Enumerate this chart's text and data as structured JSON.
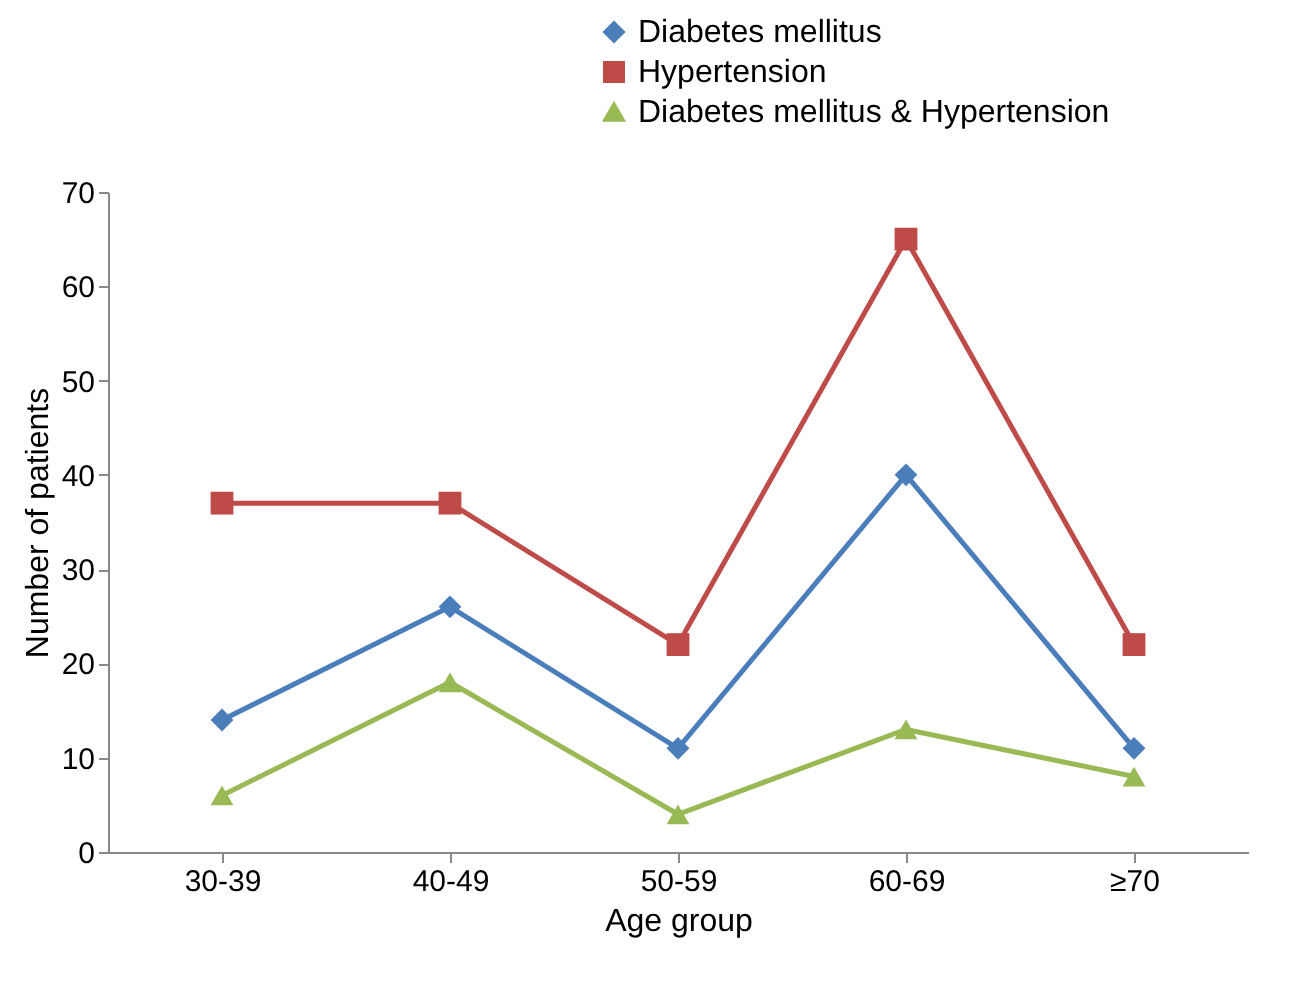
{
  "chart_data": {
    "type": "line",
    "xlabel": "Age group",
    "ylabel": "Number of patients",
    "categories": [
      "30-39",
      "40-49",
      "50-59",
      "60-69",
      "≥70"
    ],
    "series": [
      {
        "name": "Diabetes mellitus",
        "color": "#4a7ebb",
        "marker": "diamond",
        "values": [
          14,
          26,
          11,
          40,
          11
        ]
      },
      {
        "name": "Hypertension",
        "color": "#be4b48",
        "marker": "square",
        "values": [
          37,
          37,
          22,
          65,
          22
        ]
      },
      {
        "name": "Diabetes mellitus & Hypertension",
        "color": "#98b954",
        "marker": "triangle",
        "values": [
          6,
          18,
          4,
          13,
          8
        ]
      }
    ],
    "ylim": [
      0,
      70
    ],
    "yticks": [
      0,
      10,
      20,
      30,
      40,
      50,
      60,
      70
    ],
    "grid": false,
    "legend": "top right",
    "line_style": "solid"
  }
}
